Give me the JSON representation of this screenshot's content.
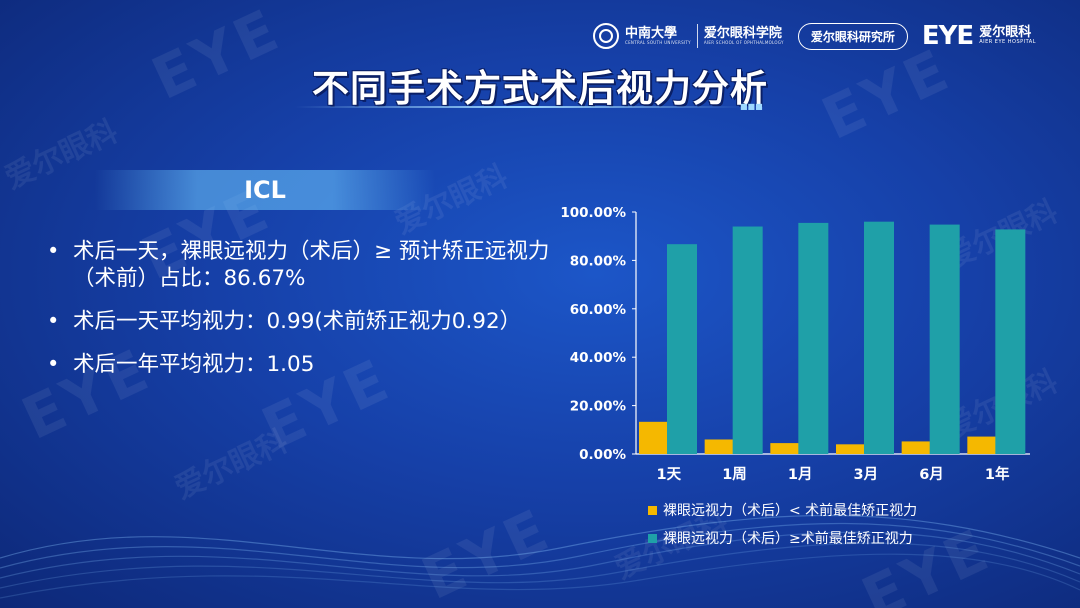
{
  "header": {
    "university_name": "中南大學",
    "university_sub": "CENTRAL SOUTH UNIVERSITY",
    "school_name": "爱尔眼科学院",
    "school_sub": "AIER SCHOOL OF OPHTHALMOLOGY",
    "institute_label": "爱尔眼科研究所",
    "brand_mark": "EYE",
    "brand_cn": "爱尔眼科",
    "brand_en": "AIER EYE HOSPITAL"
  },
  "title": "不同手术方式术后视力分析",
  "section_label": "ICL",
  "bullets": [
    "术后一天，裸眼远视力（术后）≥ 预计矫正远视力（术前）占比：86.67%",
    "术后一天平均视力：0.99(术前矫正视力0.92）",
    "术后一年平均视力：1.05"
  ],
  "watermark": {
    "mark": "EYE",
    "cn": "爱尔眼科"
  },
  "colors": {
    "series1": "#f5b800",
    "series2": "#1fa0a8",
    "text": "#ffffff"
  },
  "chart_data": {
    "type": "bar",
    "categories": [
      "1天",
      "1周",
      "1月",
      "3月",
      "6月",
      "1年"
    ],
    "series": [
      {
        "name": "裸眼远视力（术后）< 术前最佳矫正视力",
        "values": [
          13.3,
          6.0,
          4.5,
          4.0,
          5.2,
          7.2
        ]
      },
      {
        "name": "裸眼远视力（术后）≥术前最佳矫正视力",
        "values": [
          86.7,
          94.0,
          95.5,
          96.0,
          94.8,
          92.8
        ]
      }
    ],
    "ylim": [
      0,
      100
    ],
    "yticks": [
      "0.00%",
      "20.00%",
      "40.00%",
      "60.00%",
      "80.00%",
      "100.00%"
    ],
    "grid": false,
    "legend": "bottom"
  }
}
